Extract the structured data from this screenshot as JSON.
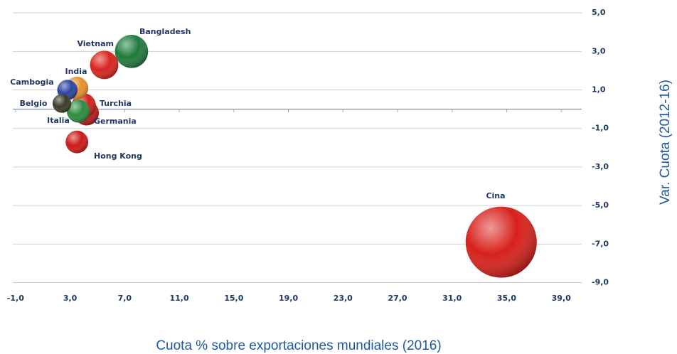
{
  "chart_data": {
    "type": "bubble",
    "x_label": "Cuota % sobre exportaciones mundiales (2016)",
    "y_label": "Var. Cuota (2012-16)",
    "xlim": [
      -1.2,
      40.5
    ],
    "ylim": [
      -9.46,
      5.3
    ],
    "xticks": [
      {
        "value": -1,
        "label": "-1,0"
      },
      {
        "value": 3,
        "label": "3,0"
      },
      {
        "value": 7,
        "label": "7,0"
      },
      {
        "value": 11,
        "label": "11,0"
      },
      {
        "value": 15,
        "label": "15,0"
      },
      {
        "value": 19,
        "label": "19,0"
      },
      {
        "value": 23,
        "label": "23,0"
      },
      {
        "value": 27,
        "label": "27,0"
      },
      {
        "value": 31,
        "label": "31,0"
      },
      {
        "value": 35,
        "label": "35,0"
      },
      {
        "value": 39,
        "label": "39,0"
      }
    ],
    "yticks": [
      {
        "value": 5,
        "label": "5,0"
      },
      {
        "value": 3,
        "label": "3,0"
      },
      {
        "value": 1,
        "label": "1,0"
      },
      {
        "value": -1,
        "label": "-1,0"
      },
      {
        "value": -3,
        "label": "-3,0"
      },
      {
        "value": -5,
        "label": "-5,0"
      },
      {
        "value": -7,
        "label": "-7,0"
      },
      {
        "value": -9,
        "label": "-9,0"
      }
    ],
    "grid": true,
    "series": [
      {
        "name": "Bangladesh",
        "color": "#1f7a3c",
        "x": [
          7.5
        ],
        "values": [
          3.0
        ]
      },
      {
        "name": "Vietnam",
        "color": "#d8241c",
        "x": [
          5.5
        ],
        "values": [
          2.3
        ]
      },
      {
        "name": "India",
        "color": "#e8902e",
        "x": [
          3.5
        ],
        "values": [
          1.1
        ]
      },
      {
        "name": "Cambogia",
        "color": "#2a44a0",
        "x": [
          2.8
        ],
        "values": [
          1.0
        ]
      },
      {
        "name": "Belgio",
        "color": "#3a3a2a",
        "x": [
          2.4
        ],
        "values": [
          0.3
        ]
      },
      {
        "name": "Turchia",
        "color": "#d0201c",
        "x": [
          4.0
        ],
        "values": [
          0.2
        ]
      },
      {
        "name": "Italia",
        "color": "#2c8c40",
        "x": [
          3.6
        ],
        "values": [
          -0.1
        ]
      },
      {
        "name": "Germania",
        "color": "#b81818",
        "x": [
          4.2
        ],
        "values": [
          -0.2
        ]
      },
      {
        "name": "Hong Kong",
        "color": "#cc1a18",
        "x": [
          3.5
        ],
        "values": [
          -1.7
        ]
      },
      {
        "name": "Cina",
        "color": "#d8201a",
        "x": [
          34.6
        ],
        "values": [
          -6.9
        ]
      }
    ]
  }
}
